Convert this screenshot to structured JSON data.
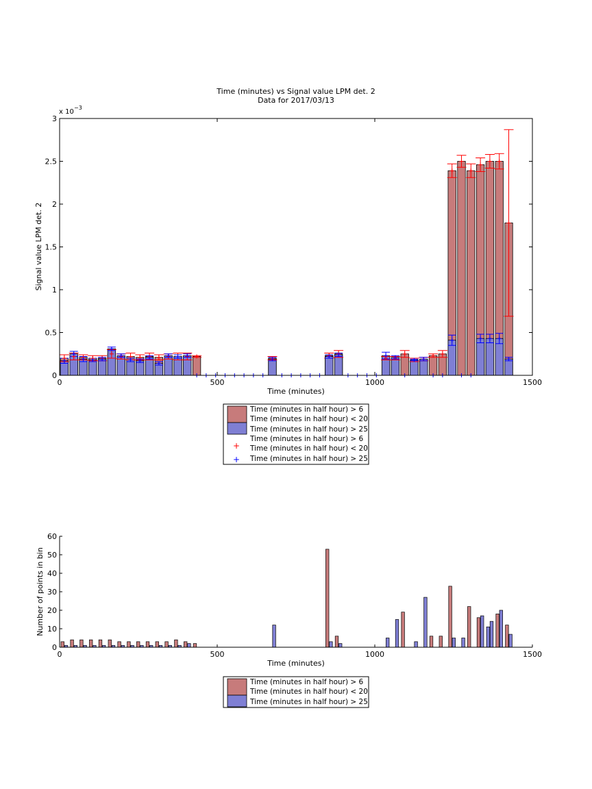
{
  "figure": {
    "top": {
      "title_line1": "Time (minutes) vs Signal value LPM det. 2",
      "title_line2": "Data for 2017/03/13",
      "xlabel": "Time (minutes)",
      "ylabel": "Signal value LPM det. 2",
      "exponent_base": "x 10",
      "exponent_power": "−3"
    },
    "bottom": {
      "xlabel": "Time (minutes)",
      "ylabel": "Number of points in bin"
    },
    "legend_top": [
      "Time (minutes in half hour) > 6",
      "Time (minutes in half hour) < 20",
      "Time (minutes in half hour) > 25",
      "Time (minutes in half hour) > 6",
      "Time (minutes in half hour) < 20",
      "Time (minutes in half hour) > 25"
    ],
    "legend_bottom": [
      "Time (minutes in half hour) > 6",
      "Time (minutes in half hour) < 20",
      "Time (minutes in half hour) > 25"
    ],
    "colors": {
      "red_fill": "#c77b7b",
      "blue_fill": "#7f7fd4",
      "red_line": "#ff0000",
      "blue_line": "#0000ff"
    }
  },
  "chart_data": [
    {
      "type": "bar",
      "title": "Time (minutes) vs Signal value LPM det. 2\nData for 2017/03/13",
      "xlabel": "Time (minutes)",
      "ylabel": "Signal value LPM det. 2",
      "xlim": [
        0,
        1500
      ],
      "ylim": [
        0,
        0.003
      ],
      "xticks": [
        0,
        500,
        1000,
        1500
      ],
      "yticks": [
        0,
        0.0005,
        0.001,
        0.0015,
        0.002,
        0.0025,
        0.003
      ],
      "ytick_labels": [
        "0",
        "0.5",
        "1",
        "1.5",
        "2",
        "2.5",
        "3"
      ],
      "series": [
        {
          "name": "Time (minutes in half hour) > 6 Time (minutes in half hour) < 20",
          "color": "#c77b7b",
          "x": [
            15,
            45,
            75,
            105,
            135,
            165,
            195,
            225,
            255,
            285,
            315,
            345,
            375,
            405,
            435,
            675,
            855,
            885,
            1035,
            1065,
            1095,
            1125,
            1155,
            1185,
            1215,
            1245,
            1275,
            1305,
            1335,
            1365,
            1395,
            1425
          ],
          "values": [
            0.0002,
            0.00022,
            0.00021,
            0.0002,
            0.0002,
            0.00025,
            0.00022,
            0.00022,
            0.00021,
            0.00022,
            0.00021,
            0.00022,
            0.00022,
            0.00022,
            0.00022,
            0.0002,
            0.00023,
            0.00025,
            0.0002,
            0.0002,
            0.00025,
            0.00018,
            0.00019,
            0.00023,
            0.00025,
            0.00239,
            0.0025,
            0.00239,
            0.00246,
            0.0025,
            0.0025,
            0.00178
          ],
          "error": [
            4e-05,
            4e-05,
            3e-05,
            3e-05,
            3e-05,
            5e-05,
            3e-05,
            4e-05,
            3e-05,
            4e-05,
            3e-05,
            3e-05,
            4e-05,
            4e-05,
            1e-05,
            2e-05,
            3e-05,
            4e-05,
            2e-05,
            2e-05,
            4e-05,
            2e-05,
            2e-05,
            2e-05,
            4e-05,
            8e-05,
            7e-05,
            8e-05,
            8e-05,
            8e-05,
            9e-05,
            0.00109
          ]
        },
        {
          "name": "Time (minutes in half hour) > 25",
          "color": "#7f7fd4",
          "x": [
            15,
            45,
            75,
            105,
            135,
            165,
            195,
            225,
            255,
            285,
            315,
            345,
            375,
            405,
            675,
            855,
            885,
            1035,
            1065,
            1095,
            1125,
            1155,
            1185,
            1215,
            1245,
            1275,
            1305,
            1335,
            1365,
            1395,
            1425
          ],
          "values": [
            0.00017,
            0.00025,
            0.00019,
            0.00018,
            0.00019,
            0.00031,
            0.00023,
            0.00018,
            0.00017,
            0.00021,
            0.00014,
            0.00023,
            0.00022,
            0.00023,
            0.00019,
            0.00022,
            0.00024,
            0.00023,
            0.00021,
            0,
            0.00018,
            0.00019,
            0,
            0,
            0.00041,
            0,
            0,
            0.00043,
            0.00043,
            0.00043,
            0.00019
          ],
          "error": [
            3e-05,
            3e-05,
            3e-05,
            2e-05,
            2e-05,
            2e-05,
            2e-05,
            2e-05,
            2e-05,
            2e-05,
            2e-05,
            2e-05,
            2e-05,
            2e-05,
            2e-05,
            2e-05,
            2e-05,
            4e-05,
            2e-05,
            0,
            1e-05,
            2e-05,
            0,
            0,
            6e-05,
            0,
            0,
            5e-05,
            5e-05,
            6e-05,
            2e-05
          ]
        }
      ],
      "markers": [
        {
          "name": "Time (minutes in half hour) > 6 Time (minutes in half hour) < 20",
          "symbol": "+",
          "color": "#ff0000",
          "x": [
            15,
            45,
            75,
            105,
            135,
            165,
            195,
            225,
            255,
            285,
            315,
            345,
            375,
            405,
            435,
            675,
            855,
            885,
            1035,
            1065,
            1095,
            1125,
            1155,
            1185,
            1215,
            1245,
            1275,
            1305,
            1335,
            1365,
            1395,
            1425
          ],
          "y": [
            0.0002,
            0.00022,
            0.00021,
            0.0002,
            0.0002,
            0.00025,
            0.00022,
            0.00022,
            0.00021,
            0.00022,
            0.00021,
            0.00022,
            0.00022,
            0.00022,
            0.00022,
            0.0002,
            0.00023,
            0.00025,
            0.0002,
            0.0002,
            0.00025,
            0.00018,
            0.00019,
            0.00023,
            0.00025,
            0.00239,
            0.0025,
            0.00239,
            0.00246,
            0.0025,
            0.0025,
            0.00178
          ]
        },
        {
          "name": "Time (minutes in half hour) > 25",
          "symbol": "+",
          "color": "#0000ff",
          "x": [
            15,
            45,
            75,
            105,
            135,
            165,
            195,
            225,
            255,
            285,
            315,
            345,
            375,
            405,
            675,
            855,
            885,
            1035,
            1065,
            1095,
            1125,
            1155,
            1185,
            1215,
            1245,
            1275,
            1305,
            1335,
            1365,
            1395,
            1425,
            435,
            465,
            495,
            525,
            555,
            585,
            615,
            645,
            705,
            735,
            765,
            795,
            825,
            915,
            945,
            975,
            1005
          ],
          "y": [
            0.00017,
            0.00025,
            0.00019,
            0.00018,
            0.00019,
            0.00031,
            0.00023,
            0.00018,
            0.00017,
            0.00021,
            0.00014,
            0.00023,
            0.00022,
            0.00023,
            0.00019,
            0.00022,
            0.00024,
            0.00023,
            0.00021,
            0,
            0.00018,
            0.00019,
            0,
            0,
            0.00041,
            0,
            0,
            0.00043,
            0.00043,
            0.00043,
            0.00019,
            0,
            0,
            0,
            0,
            0,
            0,
            0,
            0,
            0,
            0,
            0,
            0,
            0,
            0,
            0,
            0,
            0
          ]
        }
      ],
      "legend_position": "below"
    },
    {
      "type": "bar",
      "title": "",
      "xlabel": "Time (minutes)",
      "ylabel": "Number of points in bin",
      "xlim": [
        0,
        1500
      ],
      "ylim": [
        0,
        60
      ],
      "xticks": [
        0,
        500,
        1000,
        1500
      ],
      "yticks": [
        0,
        10,
        20,
        30,
        40,
        50,
        60
      ],
      "categories": [
        15,
        45,
        75,
        105,
        135,
        165,
        195,
        225,
        255,
        285,
        315,
        345,
        375,
        405,
        435,
        675,
        855,
        885,
        1035,
        1065,
        1095,
        1125,
        1155,
        1185,
        1215,
        1245,
        1275,
        1305,
        1335,
        1365,
        1395,
        1425
      ],
      "series": [
        {
          "name": "Time (minutes in half hour) > 6 Time (minutes in half hour) < 20",
          "color": "#c77b7b",
          "values": [
            3,
            4,
            4,
            4,
            4,
            4,
            3,
            3,
            3,
            3,
            3,
            3,
            4,
            3,
            2,
            0,
            53,
            6,
            0,
            0,
            19,
            0,
            0,
            6,
            6,
            33,
            0,
            22,
            16,
            0,
            18,
            12
          ]
        },
        {
          "name": "Time (minutes in half hour) > 25",
          "color": "#7f7fd4",
          "values": [
            1,
            1,
            1,
            1,
            1,
            1,
            1,
            1,
            1,
            1,
            1,
            1,
            1,
            2,
            0,
            12,
            3,
            2,
            5,
            15,
            0,
            3,
            27,
            0,
            0,
            5,
            5,
            0,
            17,
            14,
            20,
            7
          ]
        },
        {
          "name": "Time (minutes in half hour) > 25 (1)",
          "color": "#7f7fd4",
          "values": [
            0,
            0,
            0,
            0,
            0,
            0,
            0,
            0,
            0,
            0,
            0,
            0,
            0,
            0,
            0,
            0,
            0,
            0,
            0,
            0,
            0,
            0,
            0,
            0,
            0,
            0,
            0,
            0,
            0,
            11,
            0,
            0
          ]
        }
      ],
      "legend_position": "below"
    }
  ]
}
